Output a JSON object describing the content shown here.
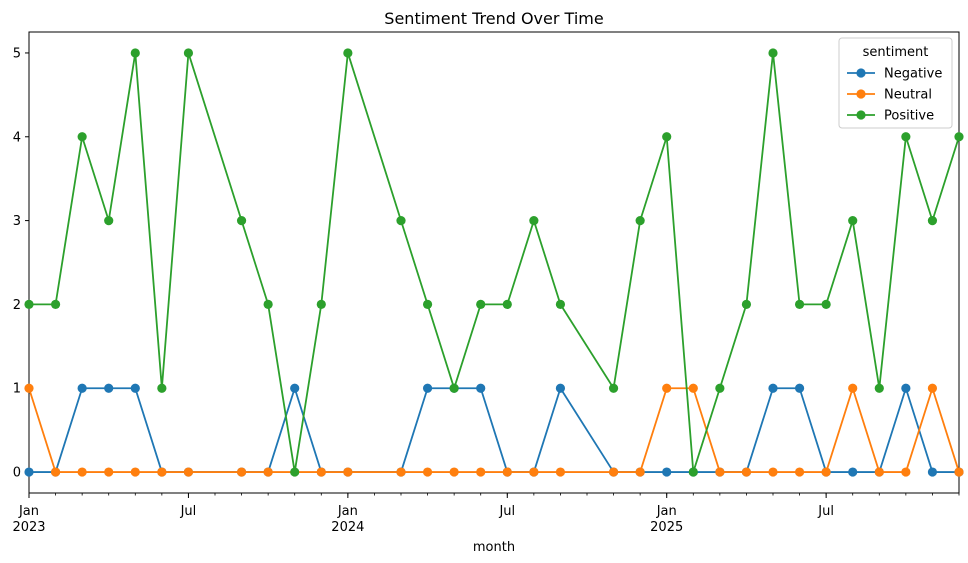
{
  "chart_data": {
    "type": "line",
    "title": "Sentiment Trend Over Time",
    "xlabel": "month",
    "ylabel": "",
    "ylim": [
      -0.25,
      5.25
    ],
    "x_range": [
      "2023-01",
      "2025-12"
    ],
    "yticks": [
      0,
      1,
      2,
      3,
      4,
      5
    ],
    "xticks": [
      {
        "month": "2023-01",
        "label": "Jan",
        "year": "2023"
      },
      {
        "month": "2023-07",
        "label": "Jul",
        "year": ""
      },
      {
        "month": "2024-01",
        "label": "Jan",
        "year": "2024"
      },
      {
        "month": "2024-07",
        "label": "Jul",
        "year": ""
      },
      {
        "month": "2025-01",
        "label": "Jan",
        "year": "2025"
      },
      {
        "month": "2025-07",
        "label": "Jul",
        "year": ""
      }
    ],
    "legend": {
      "title": "sentiment",
      "position": "top-right"
    },
    "grid": false,
    "series": [
      {
        "name": "Negative",
        "color": "#1f77b4",
        "points": [
          [
            "2023-01",
            0
          ],
          [
            "2023-02",
            0
          ],
          [
            "2023-03",
            1
          ],
          [
            "2023-04",
            1
          ],
          [
            "2023-05",
            1
          ],
          [
            "2023-06",
            0
          ],
          [
            "2023-07",
            0
          ],
          [
            "2023-09",
            0
          ],
          [
            "2023-10",
            0
          ],
          [
            "2023-11",
            1
          ],
          [
            "2023-12",
            0
          ],
          [
            "2024-01",
            0
          ],
          [
            "2024-03",
            0
          ],
          [
            "2024-04",
            1
          ],
          [
            "2024-05",
            1
          ],
          [
            "2024-06",
            1
          ],
          [
            "2024-07",
            0
          ],
          [
            "2024-08",
            0
          ],
          [
            "2024-09",
            1
          ],
          [
            "2024-11",
            0
          ],
          [
            "2024-12",
            0
          ],
          [
            "2025-01",
            0
          ],
          [
            "2025-02",
            0
          ],
          [
            "2025-03",
            0
          ],
          [
            "2025-04",
            0
          ],
          [
            "2025-05",
            1
          ],
          [
            "2025-06",
            1
          ],
          [
            "2025-07",
            0
          ],
          [
            "2025-08",
            0
          ],
          [
            "2025-09",
            0
          ],
          [
            "2025-10",
            1
          ],
          [
            "2025-11",
            0
          ],
          [
            "2025-12",
            0
          ]
        ]
      },
      {
        "name": "Neutral",
        "color": "#ff7f0e",
        "points": [
          [
            "2023-01",
            1
          ],
          [
            "2023-02",
            0
          ],
          [
            "2023-03",
            0
          ],
          [
            "2023-04",
            0
          ],
          [
            "2023-05",
            0
          ],
          [
            "2023-06",
            0
          ],
          [
            "2023-07",
            0
          ],
          [
            "2023-09",
            0
          ],
          [
            "2023-10",
            0
          ],
          [
            "2023-12",
            0
          ],
          [
            "2024-01",
            0
          ],
          [
            "2024-03",
            0
          ],
          [
            "2024-04",
            0
          ],
          [
            "2024-05",
            0
          ],
          [
            "2024-06",
            0
          ],
          [
            "2024-07",
            0
          ],
          [
            "2024-08",
            0
          ],
          [
            "2024-09",
            0
          ],
          [
            "2024-11",
            0
          ],
          [
            "2024-12",
            0
          ],
          [
            "2025-01",
            1
          ],
          [
            "2025-02",
            1
          ],
          [
            "2025-03",
            0
          ],
          [
            "2025-04",
            0
          ],
          [
            "2025-05",
            0
          ],
          [
            "2025-06",
            0
          ],
          [
            "2025-07",
            0
          ],
          [
            "2025-08",
            1
          ],
          [
            "2025-09",
            0
          ],
          [
            "2025-10",
            0
          ],
          [
            "2025-11",
            1
          ],
          [
            "2025-12",
            0
          ]
        ]
      },
      {
        "name": "Positive",
        "color": "#2ca02c",
        "points": [
          [
            "2023-01",
            2
          ],
          [
            "2023-02",
            2
          ],
          [
            "2023-03",
            4
          ],
          [
            "2023-04",
            3
          ],
          [
            "2023-05",
            5
          ],
          [
            "2023-06",
            1
          ],
          [
            "2023-07",
            5
          ],
          [
            "2023-09",
            3
          ],
          [
            "2023-10",
            2
          ],
          [
            "2023-11",
            0
          ],
          [
            "2023-12",
            2
          ],
          [
            "2024-01",
            5
          ],
          [
            "2024-03",
            3
          ],
          [
            "2024-04",
            2
          ],
          [
            "2024-05",
            1
          ],
          [
            "2024-06",
            2
          ],
          [
            "2024-07",
            2
          ],
          [
            "2024-08",
            3
          ],
          [
            "2024-09",
            2
          ],
          [
            "2024-11",
            1
          ],
          [
            "2024-12",
            3
          ],
          [
            "2025-01",
            4
          ],
          [
            "2025-02",
            0
          ],
          [
            "2025-03",
            1
          ],
          [
            "2025-04",
            2
          ],
          [
            "2025-05",
            5
          ],
          [
            "2025-06",
            2
          ],
          [
            "2025-07",
            2
          ],
          [
            "2025-08",
            3
          ],
          [
            "2025-09",
            1
          ],
          [
            "2025-10",
            4
          ],
          [
            "2025-11",
            3
          ],
          [
            "2025-12",
            4
          ]
        ]
      }
    ]
  }
}
